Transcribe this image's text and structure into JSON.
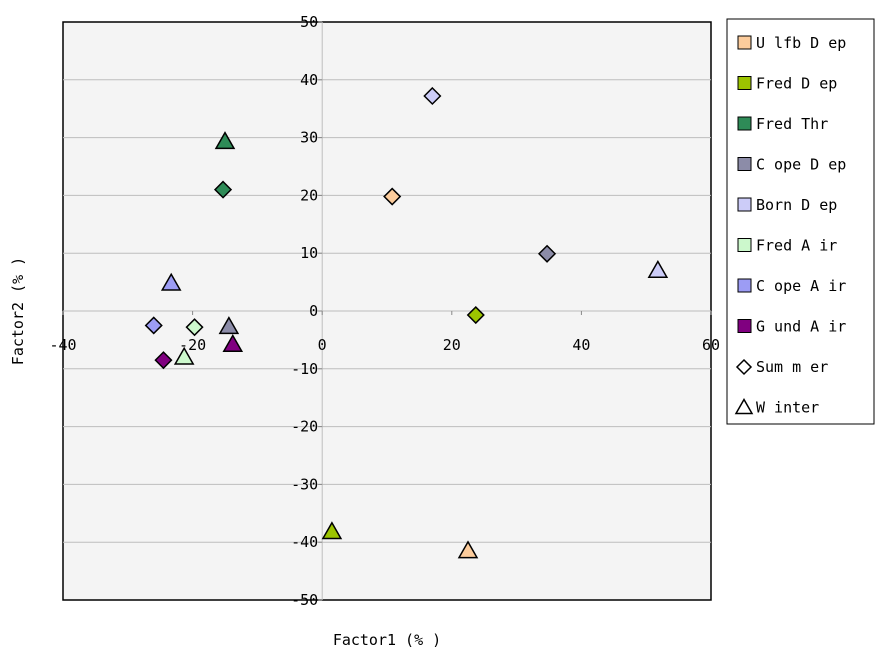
{
  "chart_data": {
    "type": "scatter",
    "title": "",
    "xlabel": "Factor1 (% )",
    "ylabel": "Factor2 (% )",
    "xlim": [
      -40,
      60
    ],
    "ylim": [
      -50,
      50
    ],
    "xticks": [
      -40,
      -20,
      0,
      20,
      40,
      60
    ],
    "yticks": [
      50,
      40,
      30,
      20,
      10,
      0,
      -10,
      -20,
      -30,
      -40,
      -50
    ],
    "grid": "horizontal",
    "legend_position": "right",
    "series": [
      {
        "name": "U lfb D ep",
        "color": "#fccc9c",
        "points": [
          {
            "x": 10.8,
            "y": 19.8,
            "season": "summer"
          },
          {
            "x": 22.5,
            "y": -41.5,
            "season": "winter"
          }
        ]
      },
      {
        "name": "Fred D ep",
        "color": "#9cc400",
        "points": [
          {
            "x": 23.7,
            "y": -0.7,
            "season": "summer"
          },
          {
            "x": 1.5,
            "y": -38.2,
            "season": "winter"
          }
        ]
      },
      {
        "name": "Fred Thr",
        "color": "#2e8b57",
        "points": [
          {
            "x": -15.3,
            "y": 21.0,
            "season": "summer"
          },
          {
            "x": -15.0,
            "y": 29.3,
            "season": "winter"
          }
        ]
      },
      {
        "name": "C ope D ep",
        "color": "#8c8ca8",
        "points": [
          {
            "x": 34.7,
            "y": 9.9,
            "season": "summer"
          },
          {
            "x": -14.4,
            "y": -2.7,
            "season": "winter"
          }
        ]
      },
      {
        "name": "Born D ep",
        "color": "#ccccf8",
        "points": [
          {
            "x": 17.0,
            "y": 37.2,
            "season": "summer"
          },
          {
            "x": 51.8,
            "y": 7.0,
            "season": "winter"
          }
        ]
      },
      {
        "name": "Fred A ir",
        "color": "#ccf8cc",
        "points": [
          {
            "x": -19.7,
            "y": -2.8,
            "season": "summer"
          },
          {
            "x": -21.3,
            "y": -8.0,
            "season": "winter"
          }
        ]
      },
      {
        "name": "C ope A ir",
        "color": "#9c9cf4",
        "points": [
          {
            "x": -26.0,
            "y": -2.5,
            "season": "summer"
          },
          {
            "x": -23.3,
            "y": 4.8,
            "season": "winter"
          }
        ]
      },
      {
        "name": "G und A ir",
        "color": "#800080",
        "points": [
          {
            "x": -24.5,
            "y": -8.5,
            "season": "summer"
          },
          {
            "x": -13.8,
            "y": -5.8,
            "season": "winter"
          }
        ]
      }
    ],
    "marker_legend": [
      {
        "name": "Sum m er",
        "shape": "diamond"
      },
      {
        "name": "W inter",
        "shape": "triangle"
      }
    ]
  }
}
